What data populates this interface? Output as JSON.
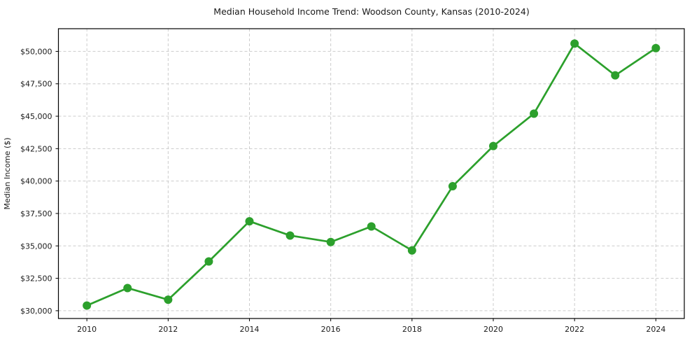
{
  "chart_data": {
    "type": "line",
    "title": "Median Household Income Trend: Woodson County, Kansas (2010-2024)",
    "xlabel": "",
    "ylabel": "Median Income ($)",
    "series": [
      {
        "name": "Median Household Income",
        "x": [
          2010,
          2011,
          2012,
          2013,
          2014,
          2015,
          2016,
          2017,
          2018,
          2019,
          2020,
          2021,
          2022,
          2023,
          2024
        ],
        "values": [
          30400,
          31750,
          30850,
          33800,
          36900,
          35800,
          35300,
          36500,
          34650,
          39600,
          42700,
          45200,
          50600,
          48150,
          50250
        ]
      }
    ],
    "line_color": "#2ca02c",
    "grid": true,
    "legend": "none",
    "xlim": [
      2009.3,
      2024.7
    ],
    "ylim": [
      29400,
      51750
    ],
    "x_ticks": [
      2010,
      2012,
      2014,
      2016,
      2018,
      2020,
      2022,
      2024
    ],
    "x_tick_labels": [
      "2010",
      "2012",
      "2014",
      "2016",
      "2018",
      "2020",
      "2022",
      "2024"
    ],
    "y_ticks": [
      30000,
      32500,
      35000,
      37500,
      40000,
      42500,
      45000,
      47500,
      50000
    ],
    "y_tick_labels": [
      "$30,000",
      "$32,500",
      "$35,000",
      "$37,500",
      "$40,000",
      "$42,500",
      "$45,000",
      "$47,500",
      "$50,000"
    ]
  }
}
